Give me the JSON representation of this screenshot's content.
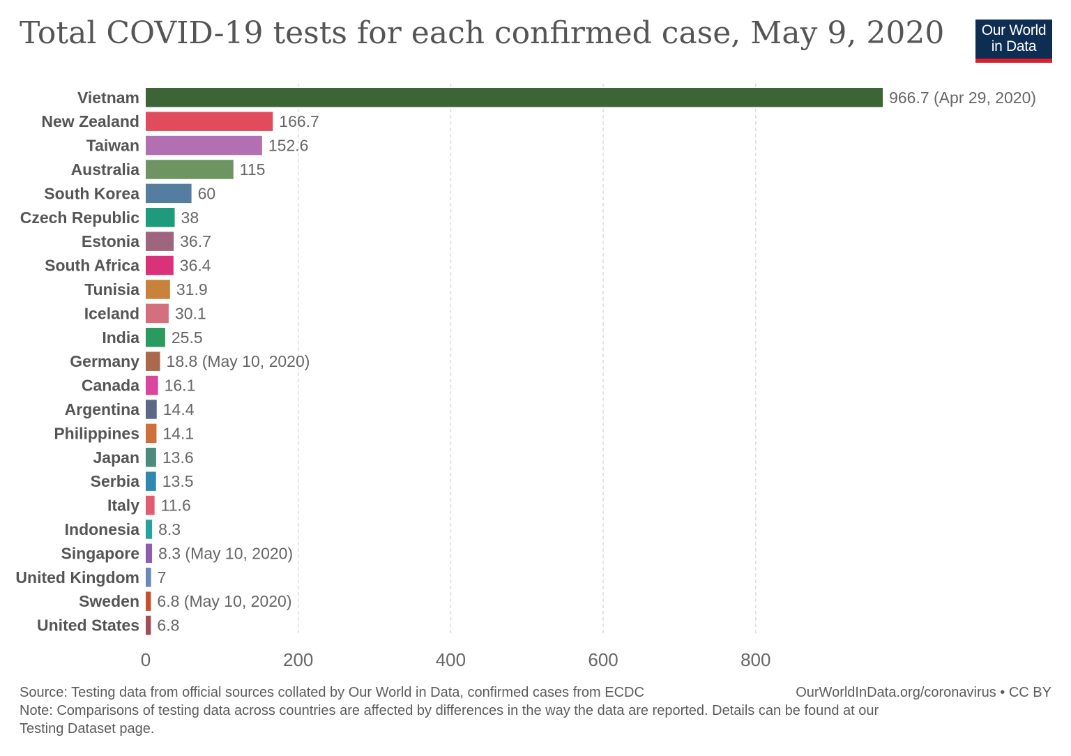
{
  "title": "Total COVID-19 tests for each confirmed case, May 9, 2020",
  "logo": {
    "line1": "Our World",
    "line2": "in Data"
  },
  "footer": {
    "source": "Source: Testing data from official sources collated by Our World in Data, confirmed cases from ECDC",
    "site": "OurWorldInData.org/coronavirus • CC BY",
    "note_line1": "Note: Comparisons of testing data across countries are affected by differences in the way the data are reported. Details can be found at our",
    "note_line2": "Testing Dataset page."
  },
  "chart_data": {
    "type": "bar",
    "orientation": "horizontal",
    "title": "Total COVID-19 tests for each confirmed case, May 9, 2020",
    "xlabel": "",
    "ylabel": "",
    "xlim": [
      0,
      966.7
    ],
    "xticks": [
      0,
      200,
      400,
      600,
      800
    ],
    "grid": "vertical dashed",
    "categories": [
      "Vietnam",
      "New Zealand",
      "Taiwan",
      "Australia",
      "South Korea",
      "Czech Republic",
      "Estonia",
      "South Africa",
      "Tunisia",
      "Iceland",
      "India",
      "Germany",
      "Canada",
      "Argentina",
      "Philippines",
      "Japan",
      "Serbia",
      "Italy",
      "Indonesia",
      "Singapore",
      "United Kingdom",
      "Sweden",
      "United States"
    ],
    "values": [
      966.7,
      166.7,
      152.6,
      115,
      60,
      38,
      36.7,
      36.4,
      31.9,
      30.1,
      25.5,
      18.8,
      16.1,
      14.4,
      14.1,
      13.6,
      13.5,
      11.6,
      8.3,
      8.3,
      7,
      6.8,
      6.8
    ],
    "value_labels": [
      "966.7 (Apr 29, 2020)",
      "166.7",
      "152.6",
      "115",
      "60",
      "38",
      "36.7",
      "36.4",
      "31.9",
      "30.1",
      "25.5",
      "18.8 (May 10, 2020)",
      "16.1",
      "14.4",
      "14.1",
      "13.6",
      "13.5",
      "11.6",
      "8.3",
      "8.3 (May 10, 2020)",
      "7",
      "6.8 (May 10, 2020)",
      "6.8"
    ],
    "colors": [
      "#3c6535",
      "#e04c5b",
      "#b26fb1",
      "#6d9461",
      "#547ea0",
      "#1e9a7d",
      "#a0657e",
      "#d9327a",
      "#c8823b",
      "#d46f7d",
      "#2a9b5f",
      "#a9694a",
      "#d9469e",
      "#5a6a86",
      "#cf703a",
      "#4b8c7d",
      "#2f88b0",
      "#e15d6e",
      "#24a39c",
      "#8d5db0",
      "#6b87b8",
      "#c4502c",
      "#a24e57"
    ]
  }
}
